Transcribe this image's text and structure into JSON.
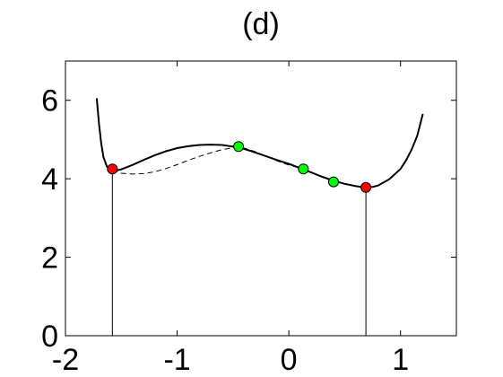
{
  "chart_data": {
    "type": "line",
    "title": "(d)",
    "xlabel": "",
    "ylabel": "",
    "xlim": [
      -2,
      1.5
    ],
    "ylim": [
      0,
      7
    ],
    "grid": false,
    "xticks": [
      "-2",
      "-1",
      "0",
      "1"
    ],
    "yticks": [
      "0",
      "2",
      "4",
      "6"
    ],
    "series": [
      {
        "style": "solid",
        "color": "#000000",
        "x": [
          -1.72,
          -1.7,
          -1.68,
          -1.66,
          -1.63,
          -1.6,
          -1.55,
          -1.5,
          -1.4,
          -1.3,
          -1.2,
          -1.1,
          -1.0,
          -0.9,
          -0.8,
          -0.7,
          -0.6,
          -0.5,
          -0.4,
          -0.3,
          -0.2,
          -0.1,
          0.0,
          0.1,
          0.2,
          0.3,
          0.4,
          0.5,
          0.6,
          0.65,
          0.7,
          0.75,
          0.8,
          0.9,
          1.0,
          1.05,
          1.1,
          1.15,
          1.2
        ],
        "y": [
          6.05,
          5.4,
          4.9,
          4.55,
          4.32,
          4.22,
          4.21,
          4.24,
          4.35,
          4.48,
          4.6,
          4.7,
          4.78,
          4.83,
          4.86,
          4.87,
          4.86,
          4.82,
          4.76,
          4.67,
          4.57,
          4.47,
          4.38,
          4.27,
          4.16,
          4.05,
          3.95,
          3.87,
          3.81,
          3.79,
          3.78,
          3.79,
          3.83,
          3.99,
          4.25,
          4.47,
          4.75,
          5.1,
          5.65
        ]
      },
      {
        "style": "dashed",
        "color": "#000000",
        "x": [
          -1.58,
          -1.5,
          -1.4,
          -1.3,
          -1.2,
          -1.1,
          -1.0,
          -0.9,
          -0.8,
          -0.7,
          -0.6,
          -0.5,
          -0.45,
          -0.4,
          -0.3,
          -0.2,
          -0.1,
          0.0,
          0.1,
          0.13
        ],
        "y": [
          4.22,
          4.14,
          4.12,
          4.13,
          4.18,
          4.26,
          4.36,
          4.47,
          4.57,
          4.66,
          4.74,
          4.79,
          4.81,
          4.78,
          4.69,
          4.57,
          4.45,
          4.35,
          4.27,
          4.25
        ]
      }
    ],
    "points": [
      {
        "x": -1.58,
        "y": 4.25,
        "color": "#ff0000"
      },
      {
        "x": -0.45,
        "y": 4.82,
        "color": "#00ff00"
      },
      {
        "x": 0.13,
        "y": 4.25,
        "color": "#00ff00"
      },
      {
        "x": 0.4,
        "y": 3.92,
        "color": "#00ff00"
      },
      {
        "x": 0.69,
        "y": 3.78,
        "color": "#ff0000"
      }
    ],
    "vlines": [
      {
        "x": -1.58,
        "y": 4.25
      },
      {
        "x": 0.69,
        "y": 3.78
      }
    ]
  }
}
